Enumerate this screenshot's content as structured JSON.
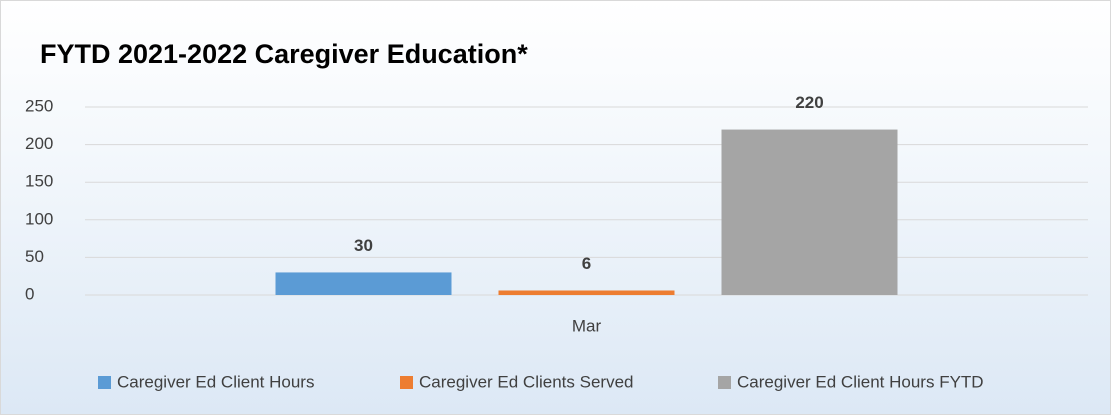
{
  "chart_data": {
    "type": "bar",
    "title": "FYTD 2021-2022 Caregiver Education*",
    "categories": [
      "Mar"
    ],
    "series": [
      {
        "name": "Caregiver Ed Client Hours",
        "color": "#5b9bd5",
        "values": [
          30
        ]
      },
      {
        "name": "Caregiver Ed Clients Served",
        "color": "#ed7d31",
        "values": [
          6
        ]
      },
      {
        "name": "Caregiver Ed Client Hours FYTD",
        "color": "#a5a5a5",
        "values": [
          220
        ]
      }
    ],
    "ylim": [
      0,
      250
    ],
    "yticks": [
      0,
      50,
      100,
      150,
      200,
      250
    ],
    "grid": true,
    "legend": "bottom"
  }
}
